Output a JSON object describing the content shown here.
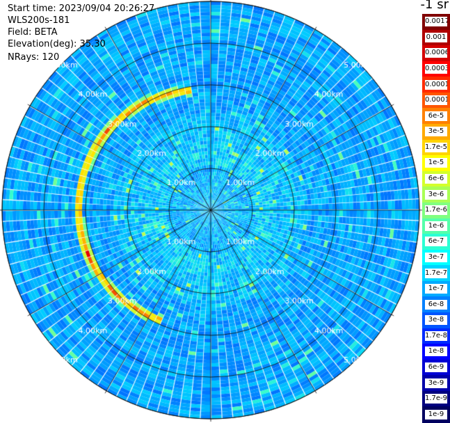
{
  "header": {
    "start_time": "Start time: 2023/09/04 20:26:27",
    "instrument": "WLS200s-181",
    "field": "Field: BETA",
    "elevation": "Elevation(deg): 35.30",
    "nrays": "NRays: 120"
  },
  "colorbar": {
    "title": "-1 sr",
    "labels": [
      "0.0017",
      "0.001",
      "0.0006",
      "0.0003",
      "0.00017",
      "0.0001",
      "6e-5",
      "3e-5",
      "1.7e-5",
      "1e-5",
      "6e-6",
      "3e-6",
      "1.7e-6",
      "1e-6",
      "6e-7",
      "3e-7",
      "1.7e-7",
      "1e-7",
      "6e-8",
      "3e-8",
      "1.7e-8",
      "1e-8",
      "6e-9",
      "3e-9",
      "1.7e-9",
      "1e-9"
    ],
    "colors": [
      "#800000",
      "#b00000",
      "#d40000",
      "#ff0000",
      "#ff2a00",
      "#ff5500",
      "#ff8000",
      "#ffaa00",
      "#ffd400",
      "#ffff00",
      "#d4ff2b",
      "#aaff55",
      "#80ff80",
      "#55ffaa",
      "#2bffd4",
      "#00ffff",
      "#00d4ff",
      "#00aaff",
      "#0080ff",
      "#0055ff",
      "#002aff",
      "#0000ff",
      "#0000d4",
      "#0000aa",
      "#000080",
      "#000060"
    ]
  },
  "chart_data": {
    "type": "heatmap",
    "projection": "polar PPI scan",
    "field": "BETA",
    "units": "-1 sr",
    "elevation_deg": 35.3,
    "n_rays": 120,
    "range_rings_km": [
      1.0,
      2.0,
      3.0,
      4.0,
      5.0
    ],
    "range_labels": [
      "1.00km",
      "2.00km",
      "3.00km",
      "4.00km",
      "5.00km"
    ],
    "max_range_km": 5.0,
    "background_level": "approximately 1e-8 to 1e-7",
    "features": [
      {
        "name": "elevated backscatter arc",
        "range_km_min": 2.6,
        "range_km_max": 3.2,
        "azimuth_deg_start": 205,
        "azimuth_deg_end": 350,
        "peak_value": "about 1e-5 to 6e-5"
      }
    ],
    "grid": true
  }
}
